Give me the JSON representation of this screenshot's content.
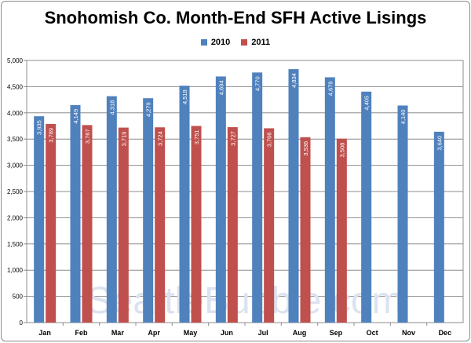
{
  "chart_data": {
    "type": "bar",
    "title": "Snohomish Co. Month-End SFH Active Lisings",
    "categories": [
      "Jan",
      "Feb",
      "Mar",
      "Apr",
      "May",
      "Jun",
      "Jul",
      "Aug",
      "Sep",
      "Oct",
      "Nov",
      "Dec"
    ],
    "series": [
      {
        "name": "2010",
        "color": "#4f81bd",
        "values": [
          3935,
          4149,
          4318,
          4279,
          4518,
          4694,
          4770,
          4834,
          4679,
          4405,
          4140,
          3640
        ]
      },
      {
        "name": "2011",
        "color": "#c0504d",
        "values": [
          3789,
          3767,
          3719,
          3724,
          3751,
          3727,
          3706,
          3536,
          3508,
          null,
          null,
          null
        ]
      }
    ],
    "data_labels": [
      [
        "3,935",
        "4,149",
        "4,318",
        "4,279",
        "4,518",
        "4,694",
        "4,770",
        "4,834",
        "4,679",
        "4,405",
        "4,140",
        "3,640"
      ],
      [
        "3,789",
        "3,767",
        "3,719",
        "3,724",
        "3,751",
        "3,727",
        "3,706",
        "3,536",
        "3,508",
        null,
        null,
        null
      ]
    ],
    "ylim": [
      0,
      5000
    ],
    "yticks": [
      0,
      500,
      1000,
      1500,
      2000,
      2500,
      3000,
      3500,
      4000,
      4500,
      5000
    ],
    "ytick_labels": [
      "0",
      "500",
      "1,000",
      "1,500",
      "2,000",
      "2,500",
      "3,000",
      "3,500",
      "4,000",
      "4,500",
      "5,000"
    ],
    "grid": true,
    "legend_position": "top"
  },
  "watermark": "SeattleBubble.com"
}
